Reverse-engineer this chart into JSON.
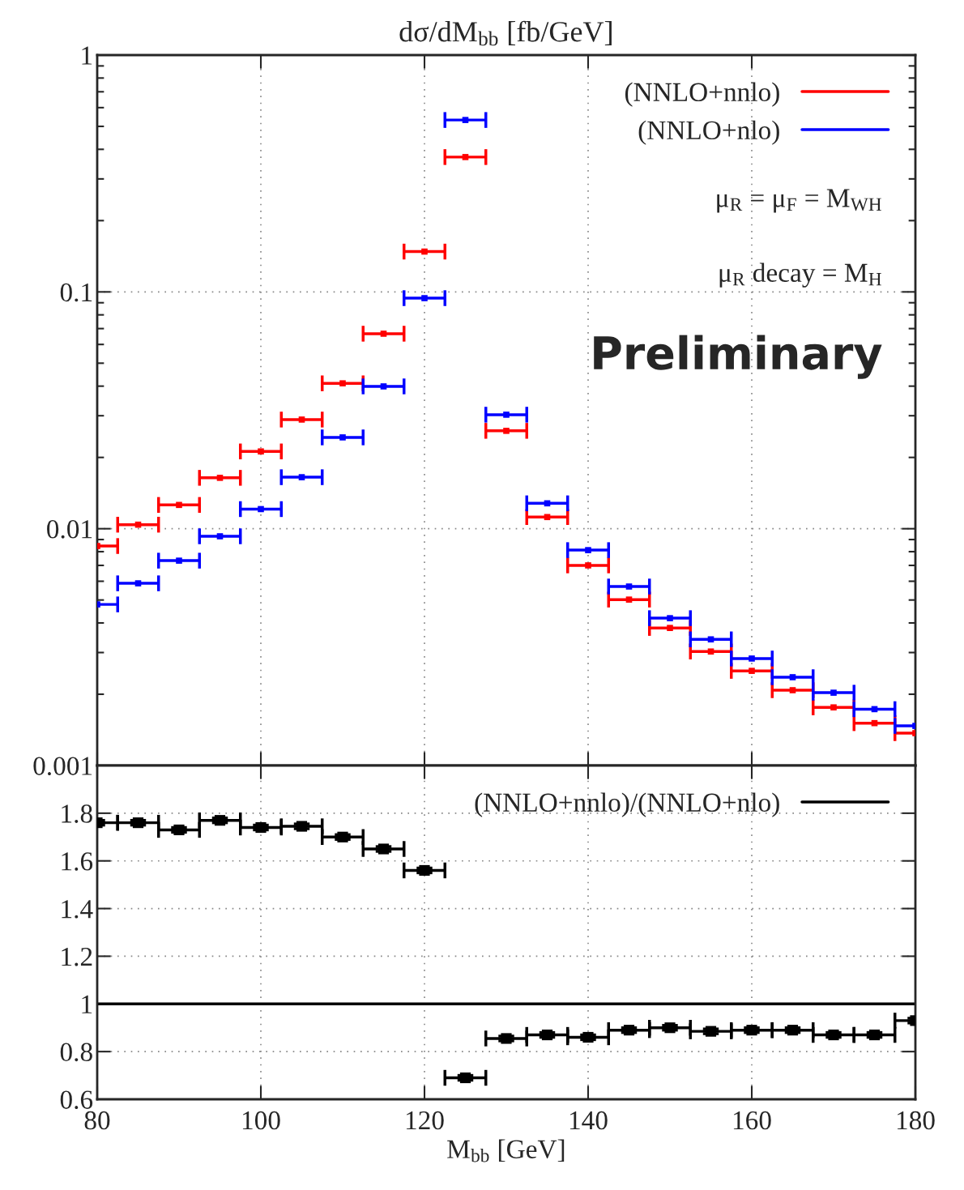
{
  "chart_data": [
    {
      "type": "scatter",
      "marker": "square",
      "title": "dσ/dM$_{bb}$ [fb/GeV]",
      "log": "y",
      "grid": true,
      "legend": "top right",
      "tick_labels": "y",
      "x": [
        80,
        85,
        90,
        95,
        100,
        105,
        110,
        115,
        120,
        125,
        130,
        135,
        140,
        145,
        150,
        155,
        160,
        165,
        170,
        175,
        180
      ],
      "xlim": [
        80,
        180
      ],
      "xticks": [
        80,
        100,
        120,
        140,
        160,
        180
      ],
      "ylim": [
        0.001,
        1
      ],
      "yticks": [
        0.001,
        0.01,
        0.1,
        1
      ],
      "series": [
        {
          "name": "(NNLO+nnlo)",
          "color": "#ff0000",
          "values": [
            0.00845,
            0.0104,
            0.0126,
            0.0164,
            0.0212,
            0.0289,
            0.0411,
            0.0666,
            0.148,
            0.371,
            0.0259,
            0.0112,
            0.007,
            0.00502,
            0.00381,
            0.00303,
            0.00251,
            0.00208,
            0.00176,
            0.00151,
            0.00137
          ],
          "xerrors": [
            2.5,
            2.5,
            2.5,
            2.5,
            2.5,
            2.5,
            2.5,
            2.5,
            2.5,
            2.5,
            2.5,
            2.5,
            2.5,
            2.5,
            2.5,
            2.5,
            2.5,
            2.5,
            2.5,
            2.5,
            2.5
          ]
        },
        {
          "name": "(NNLO+nlo)",
          "color": "#0000ff",
          "values": [
            0.00479,
            0.00588,
            0.00733,
            0.00929,
            0.0121,
            0.0165,
            0.0243,
            0.0399,
            0.0941,
            0.532,
            0.0303,
            0.0128,
            0.00812,
            0.0057,
            0.00419,
            0.00341,
            0.00283,
            0.00236,
            0.00203,
            0.00173,
            0.00147
          ],
          "xerrors": [
            2.5,
            2.5,
            2.5,
            2.5,
            2.5,
            2.5,
            2.5,
            2.5,
            2.5,
            2.5,
            2.5,
            2.5,
            2.5,
            2.5,
            2.5,
            2.5,
            2.5,
            2.5,
            2.5,
            2.5,
            2.5
          ]
        }
      ],
      "annotations": [
        "μ$_{R}$ = μ$_{F}$ = M$_{WH}$",
        "μ$_{R}$ decay = M$_{H}$",
        "Preliminary"
      ]
    },
    {
      "type": "scatter",
      "marker": "square",
      "xlabel": "M$_{bb}$ [GeV]",
      "grid": true,
      "legend": "top right",
      "x": [
        80,
        85,
        90,
        95,
        100,
        105,
        110,
        115,
        120,
        125,
        130,
        135,
        140,
        145,
        150,
        155,
        160,
        165,
        170,
        175,
        180
      ],
      "xlim": [
        80,
        180
      ],
      "xticks": [
        80,
        100,
        120,
        140,
        160,
        180
      ],
      "ylim": [
        0.6,
        2.0
      ],
      "yticks": [
        0.6,
        0.8,
        1,
        1.2,
        1.4,
        1.6,
        1.8
      ],
      "ref_lines": [
        {
          "axis": "y",
          "value": 1,
          "color": "#000000"
        }
      ],
      "series": [
        {
          "name": "(NNLO+nnlo)/(NNLO+nlo)",
          "color": "#000000",
          "values": [
            1.76,
            1.76,
            1.73,
            1.77,
            1.74,
            1.745,
            1.7,
            1.65,
            1.56,
            0.69,
            0.855,
            0.87,
            0.86,
            0.89,
            0.9,
            0.885,
            0.89,
            0.89,
            0.87,
            0.87,
            0.93
          ],
          "errors": [
            0.01,
            0.01,
            0.01,
            0.01,
            0.01,
            0.01,
            0.01,
            0.01,
            0.01,
            0.01,
            0.01,
            0.01,
            0.01,
            0.01,
            0.01,
            0.01,
            0.01,
            0.01,
            0.01,
            0.01,
            0.01
          ],
          "xerrors": [
            2.5,
            2.5,
            2.5,
            2.5,
            2.5,
            2.5,
            2.5,
            2.5,
            2.5,
            2.5,
            2.5,
            2.5,
            2.5,
            2.5,
            2.5,
            2.5,
            2.5,
            2.5,
            2.5,
            2.5,
            2.5
          ]
        }
      ]
    }
  ]
}
